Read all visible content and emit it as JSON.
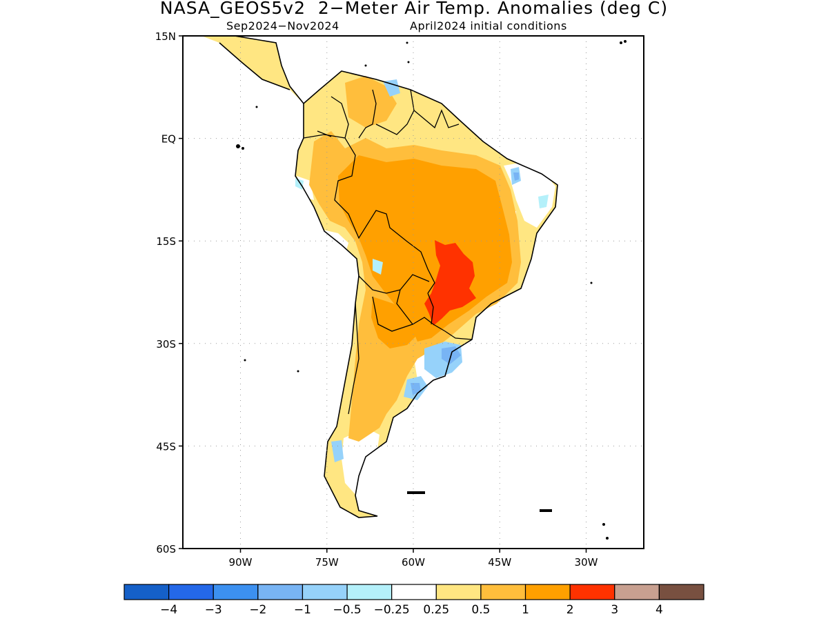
{
  "title": "NASA_GEOS5v2  2−Meter Air Temp. Anomalies (deg C)",
  "subtitle_left": "Sep2024−Nov2024",
  "subtitle_right": "April2024 initial conditions",
  "map": {
    "region": "South America",
    "projection": "lat-lon",
    "lon_range": [
      -100,
      -20
    ],
    "lat_range": [
      -60,
      15
    ],
    "grid": "dotted",
    "lat_ticks": [
      {
        "label": "15N",
        "lat": 15
      },
      {
        "label": "EQ",
        "lat": 0
      },
      {
        "label": "15S",
        "lat": -15
      },
      {
        "label": "30S",
        "lat": -30
      },
      {
        "label": "45S",
        "lat": -45
      },
      {
        "label": "60S",
        "lat": -60
      }
    ],
    "lon_ticks": [
      {
        "label": "90W",
        "lon": -90
      },
      {
        "label": "75W",
        "lon": -75
      },
      {
        "label": "60W",
        "lon": -60
      },
      {
        "label": "45W",
        "lon": -45
      },
      {
        "label": "30W",
        "lon": -30
      }
    ]
  },
  "colorbar": {
    "colors": [
      "#1560c8",
      "#2468e8",
      "#3c90f0",
      "#78b4f4",
      "#96d2fa",
      "#b4f0fa",
      "#ffffff",
      "#ffe682",
      "#ffbe3c",
      "#ffa000",
      "#ff3200",
      "#c8a090",
      "#785040"
    ],
    "labels": [
      "−4",
      "−3",
      "−2",
      "−1",
      "−0.5",
      "−0.25",
      "0.25",
      "0.5",
      "1",
      "2",
      "3",
      "4"
    ]
  }
}
